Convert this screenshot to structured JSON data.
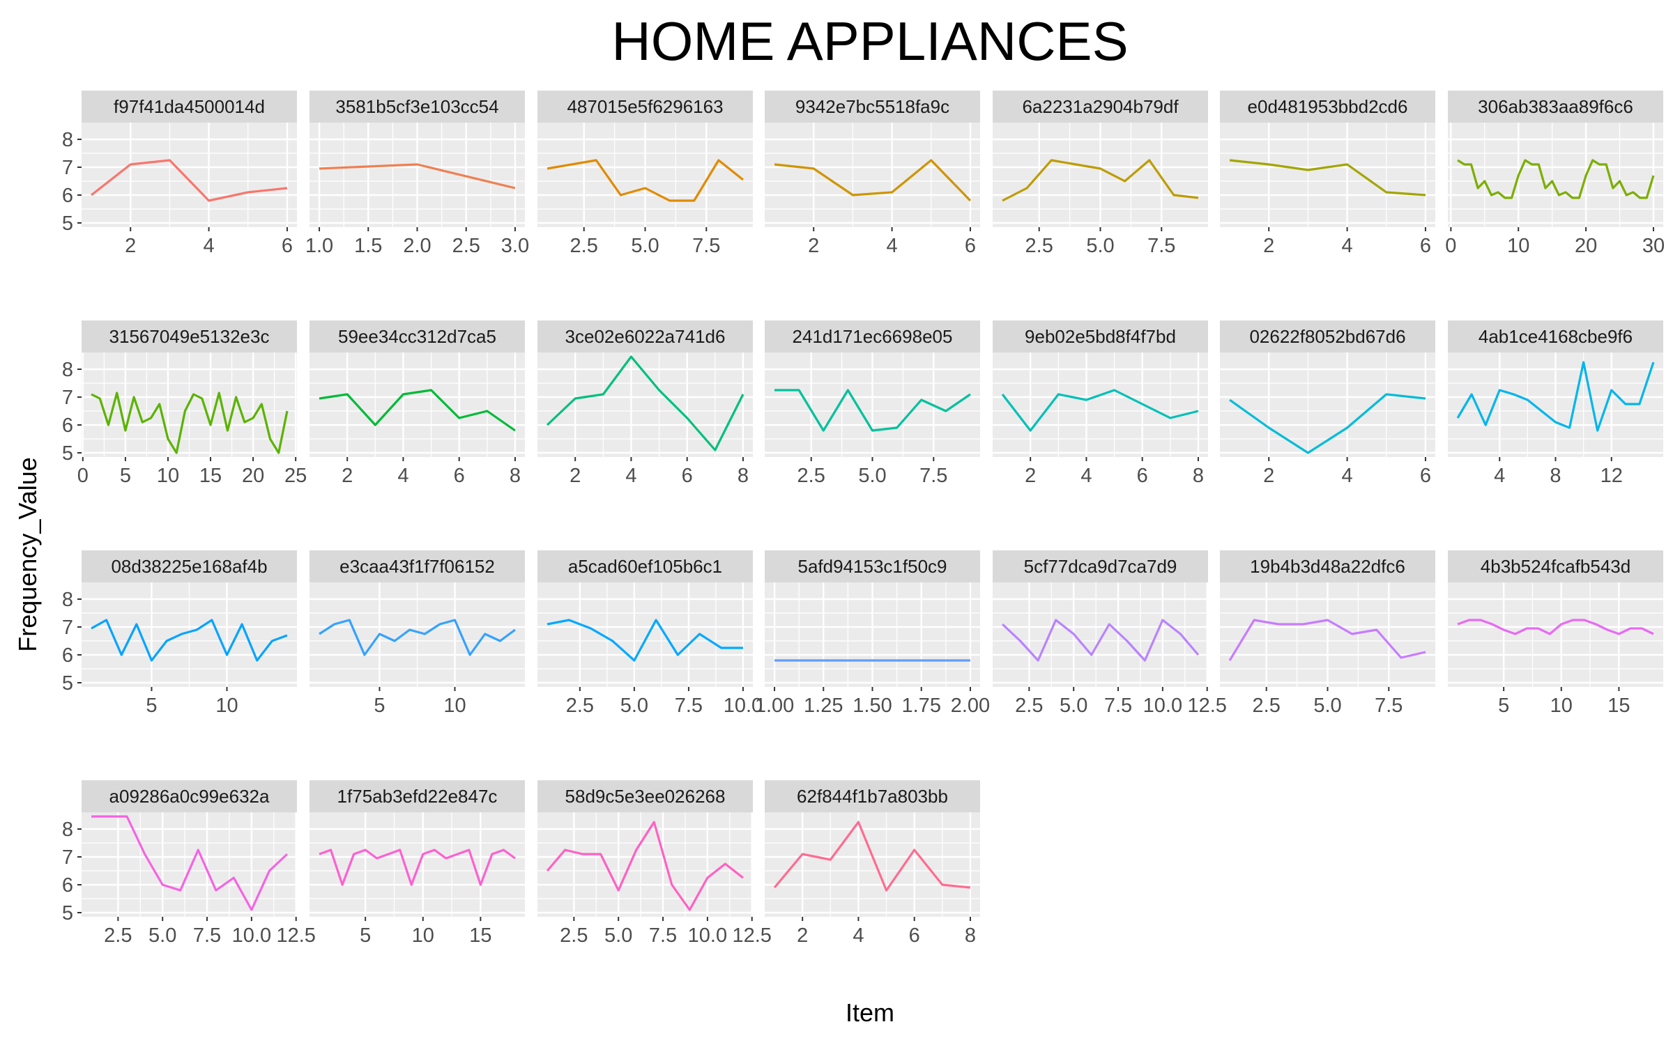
{
  "chart_data": {
    "type": "line",
    "title": "HOME APPLIANCES",
    "xlabel": "Item",
    "ylabel": "Frequency_Value",
    "ylim": [
      4.85,
      8.6
    ],
    "y_ticks": [
      5,
      6,
      7,
      8
    ],
    "grid": true,
    "legend": "none",
    "panels": [
      {
        "name": "f97f41da4500014d",
        "color": "#F8766D",
        "x_ticks": [
          {
            "v": 2,
            "label": "2"
          },
          {
            "v": 4,
            "label": "4"
          },
          {
            "v": 6,
            "label": "6"
          }
        ],
        "x": [
          1,
          2,
          3,
          4,
          5,
          6
        ],
        "y": [
          6.0,
          7.1,
          7.25,
          5.8,
          6.1,
          6.25
        ]
      },
      {
        "name": "3581b5cf3e103cc54",
        "color": "#F07F51",
        "x_ticks": [
          {
            "v": 1.0,
            "label": "1.0"
          },
          {
            "v": 1.5,
            "label": "1.5"
          },
          {
            "v": 2.0,
            "label": "2.0"
          },
          {
            "v": 2.5,
            "label": "2.5"
          },
          {
            "v": 3.0,
            "label": "3.0"
          }
        ],
        "x": [
          1,
          2,
          3
        ],
        "y": [
          6.95,
          7.1,
          6.25
        ]
      },
      {
        "name": "487015e5f6296163",
        "color": "#E08B00",
        "x_ticks": [
          {
            "v": 2.5,
            "label": "2.5"
          },
          {
            "v": 5.0,
            "label": "5.0"
          },
          {
            "v": 7.5,
            "label": "7.5"
          }
        ],
        "x": [
          1,
          2,
          3,
          4,
          5,
          6,
          7,
          8,
          9
        ],
        "y": [
          6.95,
          7.1,
          7.25,
          6.0,
          6.25,
          5.8,
          5.8,
          7.25,
          6.55
        ]
      },
      {
        "name": "9342e7bc5518fa9c",
        "color": "#CF9400",
        "x_ticks": [
          {
            "v": 2,
            "label": "2"
          },
          {
            "v": 4,
            "label": "4"
          },
          {
            "v": 6,
            "label": "6"
          }
        ],
        "x": [
          1,
          2,
          3,
          4,
          5,
          6
        ],
        "y": [
          7.1,
          6.95,
          6.0,
          6.1,
          7.25,
          5.8
        ]
      },
      {
        "name": "6a2231a2904b79df",
        "color": "#BE9C00",
        "x_ticks": [
          {
            "v": 2.5,
            "label": "2.5"
          },
          {
            "v": 5.0,
            "label": "5.0"
          },
          {
            "v": 7.5,
            "label": "7.5"
          }
        ],
        "x": [
          1,
          2,
          3,
          4,
          5,
          6,
          7,
          8,
          9
        ],
        "y": [
          5.8,
          6.25,
          7.25,
          7.1,
          6.95,
          6.5,
          7.25,
          6.0,
          5.9
        ]
      },
      {
        "name": "e0d481953bbd2cd6",
        "color": "#A3A500",
        "x_ticks": [
          {
            "v": 2,
            "label": "2"
          },
          {
            "v": 4,
            "label": "4"
          },
          {
            "v": 6,
            "label": "6"
          }
        ],
        "x": [
          1,
          2,
          3,
          4,
          5,
          6
        ],
        "y": [
          7.25,
          7.1,
          6.9,
          7.1,
          6.1,
          6.0
        ]
      },
      {
        "name": "306ab383aa89f6c6",
        "color": "#7CAE00",
        "x_ticks": [
          {
            "v": 0,
            "label": "0"
          },
          {
            "v": 10,
            "label": "10"
          },
          {
            "v": 20,
            "label": "20"
          },
          {
            "v": 30,
            "label": "30"
          }
        ],
        "x": [
          1,
          2,
          3,
          4,
          5,
          6,
          7,
          8,
          9,
          10,
          11,
          12,
          13,
          14,
          15,
          16,
          17,
          18,
          19,
          20,
          21,
          22,
          23,
          24,
          25,
          26,
          27,
          28,
          29,
          30
        ],
        "y": [
          7.25,
          7.1,
          7.1,
          6.25,
          6.5,
          6.0,
          6.1,
          5.9,
          5.9,
          6.7,
          7.25,
          7.1,
          7.1,
          6.25,
          6.5,
          6.0,
          6.1,
          5.9,
          5.9,
          6.7,
          7.25,
          7.1,
          7.1,
          6.25,
          6.5,
          6.0,
          6.1,
          5.9,
          5.9,
          6.7
        ]
      },
      {
        "name": "31567049e5132e3c",
        "color": "#5BB300",
        "x_ticks": [
          {
            "v": 0,
            "label": "0"
          },
          {
            "v": 5,
            "label": "5"
          },
          {
            "v": 10,
            "label": "10"
          },
          {
            "v": 15,
            "label": "15"
          },
          {
            "v": 20,
            "label": "20"
          },
          {
            "v": 25,
            "label": "25"
          }
        ],
        "x": [
          1,
          2,
          3,
          4,
          5,
          6,
          7,
          8,
          9,
          10,
          11,
          12,
          13,
          14,
          15,
          16,
          17,
          18,
          19,
          20,
          21,
          22,
          23,
          24
        ],
        "y": [
          7.1,
          6.95,
          6.0,
          7.15,
          5.8,
          7.0,
          6.1,
          6.25,
          6.75,
          5.5,
          5.0,
          6.5,
          7.1,
          6.95,
          6.0,
          7.15,
          5.8,
          7.0,
          6.1,
          6.25,
          6.75,
          5.5,
          5.0,
          6.5
        ]
      },
      {
        "name": "59ee34cc312d7ca5",
        "color": "#00BA38",
        "x_ticks": [
          {
            "v": 2,
            "label": "2"
          },
          {
            "v": 4,
            "label": "4"
          },
          {
            "v": 6,
            "label": "6"
          },
          {
            "v": 8,
            "label": "8"
          }
        ],
        "x": [
          1,
          2,
          3,
          4,
          5,
          6,
          7,
          8
        ],
        "y": [
          6.95,
          7.1,
          6.0,
          7.1,
          7.25,
          6.25,
          6.5,
          5.8
        ]
      },
      {
        "name": "3ce02e6022a741d6",
        "color": "#00BF7D",
        "x_ticks": [
          {
            "v": 2,
            "label": "2"
          },
          {
            "v": 4,
            "label": "4"
          },
          {
            "v": 6,
            "label": "6"
          },
          {
            "v": 8,
            "label": "8"
          }
        ],
        "x": [
          1,
          2,
          3,
          4,
          5,
          6,
          7,
          8
        ],
        "y": [
          6.0,
          6.95,
          7.1,
          8.45,
          7.25,
          6.25,
          5.1,
          7.1
        ]
      },
      {
        "name": "241d171ec6698e05",
        "color": "#00C19C",
        "x_ticks": [
          {
            "v": 2.5,
            "label": "2.5"
          },
          {
            "v": 5.0,
            "label": "5.0"
          },
          {
            "v": 7.5,
            "label": "7.5"
          }
        ],
        "x": [
          1,
          2,
          3,
          4,
          5,
          6,
          7,
          8,
          9
        ],
        "y": [
          7.25,
          7.25,
          5.8,
          7.25,
          5.8,
          5.9,
          6.9,
          6.5,
          7.1
        ]
      },
      {
        "name": "9eb02e5bd8f4f7bd",
        "color": "#00C0B8",
        "x_ticks": [
          {
            "v": 2,
            "label": "2"
          },
          {
            "v": 4,
            "label": "4"
          },
          {
            "v": 6,
            "label": "6"
          },
          {
            "v": 8,
            "label": "8"
          }
        ],
        "x": [
          1,
          2,
          3,
          4,
          5,
          6,
          7,
          8
        ],
        "y": [
          7.1,
          5.8,
          7.1,
          6.9,
          7.25,
          6.75,
          6.25,
          6.5
        ]
      },
      {
        "name": "02622f8052bd67d6",
        "color": "#00BCD8",
        "x_ticks": [
          {
            "v": 2,
            "label": "2"
          },
          {
            "v": 4,
            "label": "4"
          },
          {
            "v": 6,
            "label": "6"
          }
        ],
        "x": [
          1,
          2,
          3,
          4,
          5,
          6
        ],
        "y": [
          6.9,
          5.9,
          5.0,
          5.9,
          7.1,
          6.95
        ]
      },
      {
        "name": "4ab1ce4168cbe9f6",
        "color": "#00B6EB",
        "x_ticks": [
          {
            "v": 4,
            "label": "4"
          },
          {
            "v": 8,
            "label": "8"
          },
          {
            "v": 12,
            "label": "12"
          }
        ],
        "x": [
          1,
          2,
          3,
          4,
          5,
          6,
          7,
          8,
          9,
          10,
          11,
          12,
          13,
          14,
          15
        ],
        "y": [
          6.25,
          7.1,
          6.0,
          7.25,
          7.1,
          6.9,
          6.5,
          6.1,
          5.9,
          8.25,
          5.8,
          7.25,
          6.75,
          6.75,
          8.25
        ]
      },
      {
        "name": "08d38225e168af4b",
        "color": "#06A4FF",
        "x_ticks": [
          {
            "v": 5,
            "label": "5"
          },
          {
            "v": 10,
            "label": "10"
          }
        ],
        "x": [
          1,
          2,
          3,
          4,
          5,
          6,
          7,
          8,
          9,
          10,
          11,
          12,
          13,
          14
        ],
        "y": [
          6.95,
          7.25,
          6.0,
          7.1,
          5.8,
          6.5,
          6.75,
          6.9,
          7.25,
          6.0,
          7.1,
          5.8,
          6.5,
          6.7
        ]
      },
      {
        "name": "e3caa43f1f7f06152",
        "color": "#35A2FF",
        "x_ticks": [
          {
            "v": 5,
            "label": "5"
          },
          {
            "v": 10,
            "label": "10"
          }
        ],
        "x": [
          1,
          2,
          3,
          4,
          5,
          6,
          7,
          8,
          9,
          10,
          11,
          12,
          13,
          14
        ],
        "y": [
          6.75,
          7.1,
          7.25,
          6.0,
          6.75,
          6.5,
          6.9,
          6.75,
          7.1,
          7.25,
          6.0,
          6.75,
          6.5,
          6.9
        ]
      },
      {
        "name": "a5cad60ef105b6c1",
        "color": "#00A9FF",
        "x_ticks": [
          {
            "v": 2.5,
            "label": "2.5"
          },
          {
            "v": 5.0,
            "label": "5.0"
          },
          {
            "v": 7.5,
            "label": "7.5"
          },
          {
            "v": 10.0,
            "label": "10.0"
          }
        ],
        "x": [
          1,
          2,
          3,
          4,
          5,
          6,
          7,
          8,
          9,
          10
        ],
        "y": [
          7.1,
          7.25,
          6.95,
          6.5,
          5.8,
          7.25,
          6.0,
          6.75,
          6.25,
          6.25
        ]
      },
      {
        "name": "5afd94153c1f50c9",
        "color": "#619CFF",
        "x_ticks": [
          {
            "v": 1.0,
            "label": "1.00"
          },
          {
            "v": 1.25,
            "label": "1.25"
          },
          {
            "v": 1.5,
            "label": "1.50"
          },
          {
            "v": 1.75,
            "label": "1.75"
          },
          {
            "v": 2.0,
            "label": "2.00"
          }
        ],
        "x": [
          1,
          2
        ],
        "y": [
          5.8,
          5.8
        ]
      },
      {
        "name": "5cf77dca9d7ca7d9",
        "color": "#B983FF",
        "x_ticks": [
          {
            "v": 2.5,
            "label": "2.5"
          },
          {
            "v": 5.0,
            "label": "5.0"
          },
          {
            "v": 7.5,
            "label": "7.5"
          },
          {
            "v": 10.0,
            "label": "10.0"
          },
          {
            "v": 12.5,
            "label": "12.5"
          }
        ],
        "x": [
          1,
          2,
          3,
          4,
          5,
          6,
          7,
          8,
          9,
          10,
          11,
          12
        ],
        "y": [
          7.1,
          6.5,
          5.8,
          7.25,
          6.75,
          6.0,
          7.1,
          6.5,
          5.8,
          7.25,
          6.75,
          6.0
        ]
      },
      {
        "name": "19b4b3d48a22dfc6",
        "color": "#C77CFF",
        "x_ticks": [
          {
            "v": 2.5,
            "label": "2.5"
          },
          {
            "v": 5.0,
            "label": "5.0"
          },
          {
            "v": 7.5,
            "label": "7.5"
          }
        ],
        "x": [
          1,
          2,
          3,
          4,
          5,
          6,
          7,
          8,
          9
        ],
        "y": [
          5.8,
          7.25,
          7.1,
          7.1,
          7.25,
          6.75,
          6.9,
          5.9,
          6.1
        ]
      },
      {
        "name": "4b3b524fcafb543d",
        "color": "#E76BF3",
        "x_ticks": [
          {
            "v": 5,
            "label": "5"
          },
          {
            "v": 10,
            "label": "10"
          },
          {
            "v": 15,
            "label": "15"
          }
        ],
        "x": [
          1,
          2,
          3,
          4,
          5,
          6,
          7,
          8,
          9,
          10,
          11,
          12,
          13,
          14,
          15,
          16,
          17,
          18
        ],
        "y": [
          7.1,
          7.25,
          7.25,
          7.1,
          6.9,
          6.75,
          6.95,
          6.95,
          6.75,
          7.1,
          7.25,
          7.25,
          7.1,
          6.9,
          6.75,
          6.95,
          6.95,
          6.75
        ]
      },
      {
        "name": "a09286a0c99e632a",
        "color": "#F564E3",
        "x_ticks": [
          {
            "v": 2.5,
            "label": "2.5"
          },
          {
            "v": 5.0,
            "label": "5.0"
          },
          {
            "v": 7.5,
            "label": "7.5"
          },
          {
            "v": 10.0,
            "label": "10.0"
          },
          {
            "v": 12.5,
            "label": "12.5"
          }
        ],
        "x": [
          1,
          2,
          3,
          4,
          5,
          6,
          7,
          8,
          9,
          10,
          11,
          12
        ],
        "y": [
          8.45,
          8.45,
          8.45,
          7.1,
          6.0,
          5.8,
          7.25,
          5.8,
          6.25,
          5.1,
          6.5,
          7.1
        ]
      },
      {
        "name": "1f75ab3efd22e847c",
        "color": "#FD61D1",
        "x_ticks": [
          {
            "v": 5,
            "label": "5"
          },
          {
            "v": 10,
            "label": "10"
          },
          {
            "v": 15,
            "label": "15"
          }
        ],
        "x": [
          1,
          2,
          3,
          4,
          5,
          6,
          7,
          8,
          9,
          10,
          11,
          12,
          13,
          14,
          15,
          16,
          17,
          18
        ],
        "y": [
          7.1,
          7.25,
          6.0,
          7.1,
          7.25,
          6.95,
          7.1,
          7.25,
          6.0,
          7.1,
          7.25,
          6.95,
          7.1,
          7.25,
          6.0,
          7.1,
          7.25,
          6.95
        ]
      },
      {
        "name": "58d9c5e3ee026268",
        "color": "#FF61C3",
        "x_ticks": [
          {
            "v": 2.5,
            "label": "2.5"
          },
          {
            "v": 5.0,
            "label": "5.0"
          },
          {
            "v": 7.5,
            "label": "7.5"
          },
          {
            "v": 10.0,
            "label": "10.0"
          },
          {
            "v": 12.5,
            "label": "12.5"
          }
        ],
        "x": [
          1,
          2,
          3,
          4,
          5,
          6,
          7,
          8,
          9,
          10,
          11,
          12
        ],
        "y": [
          6.5,
          7.25,
          7.1,
          7.1,
          5.8,
          7.25,
          8.25,
          6.0,
          5.1,
          6.25,
          6.75,
          6.25
        ]
      },
      {
        "name": "62f844f1b7a803bb",
        "color": "#FF6C91",
        "x_ticks": [
          {
            "v": 2,
            "label": "2"
          },
          {
            "v": 4,
            "label": "4"
          },
          {
            "v": 6,
            "label": "6"
          },
          {
            "v": 8,
            "label": "8"
          }
        ],
        "x": [
          1,
          2,
          3,
          4,
          5,
          6,
          7,
          8
        ],
        "y": [
          5.9,
          7.1,
          6.9,
          8.25,
          5.8,
          7.25,
          6.0,
          5.9
        ]
      }
    ]
  }
}
